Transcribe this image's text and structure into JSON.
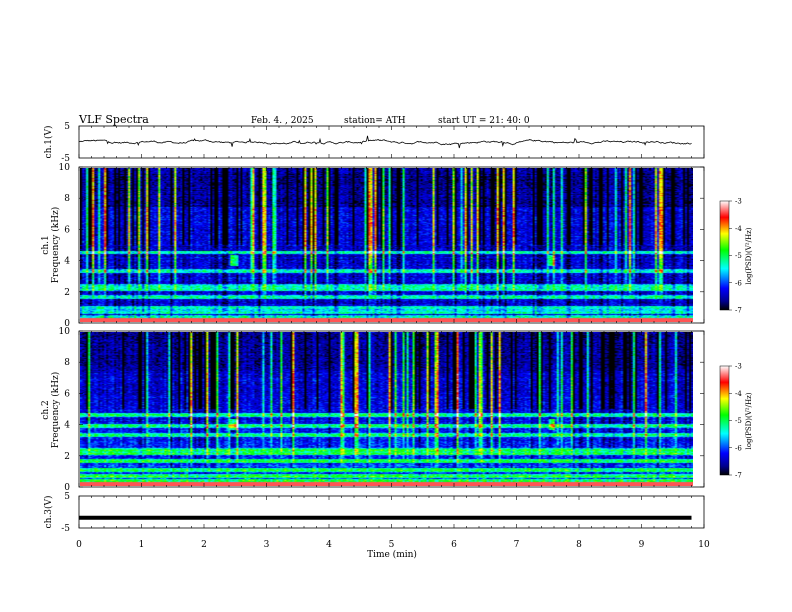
{
  "header": {
    "title": "VLF  Spectra",
    "date": "Feb. 4.  , 2025",
    "station": "station= ATH",
    "start": "start  UT  =    21: 40: 0"
  },
  "colors": {
    "waveform": "#000000",
    "colormap": [
      "#000000",
      "#00008c",
      "#0000ff",
      "#00ffff",
      "#00ff00",
      "#ffff00",
      "#ff0000",
      "#ffffff"
    ]
  },
  "chart_data": [
    {
      "type": "line",
      "panel": "ch1-waveform",
      "ylabel": "ch.1(V)",
      "yticks": [
        "5",
        "-5"
      ],
      "ylim": [
        -5,
        5
      ],
      "xlim": [
        0,
        10
      ],
      "data_end_min": 9.8,
      "baseline": 0,
      "noise_amplitude": 0.7,
      "series": [
        {
          "x": [
            0,
            2,
            4,
            6,
            8,
            9.8
          ],
          "y": [
            0,
            0,
            0,
            0,
            0,
            0
          ]
        }
      ]
    },
    {
      "type": "heatmap",
      "panel": "ch1-spectrogram",
      "ylabel_top": "ch.1",
      "ylabel": "Frequency (kHz)",
      "yticks": [
        "0",
        "2",
        "4",
        "6",
        "8",
        "10"
      ],
      "ylim": [
        0,
        10
      ],
      "xlim": [
        0,
        10
      ],
      "data_end_min": 9.8,
      "colorbar": {
        "label": "log(PSD)(V²/Hz)",
        "ticks": [
          "-3",
          "-4",
          "-5",
          "-6",
          "-7"
        ],
        "range": [
          -7,
          -3
        ]
      },
      "bands_kHz": [
        0.3,
        0.6,
        0.9,
        1.6,
        2.1,
        2.3,
        3.3,
        4.5
      ],
      "bursts": [
        {
          "t_min": 2.45,
          "f_kHz": 4.0
        },
        {
          "t_min": 7.55,
          "f_kHz": 4.0
        }
      ]
    },
    {
      "type": "heatmap",
      "panel": "ch2-spectrogram",
      "ylabel_top": "ch.2",
      "ylabel": "Frequency (kHz)",
      "yticks": [
        "0",
        "2",
        "4",
        "6",
        "8",
        "10"
      ],
      "ylim": [
        0,
        10
      ],
      "xlim": [
        0,
        10
      ],
      "data_end_min": 9.8,
      "colorbar": {
        "label": "log(PSD)(V²/Hz)",
        "ticks": [
          "-3",
          "-4",
          "-5",
          "-6",
          "-7"
        ],
        "range": [
          -7,
          -3
        ]
      },
      "bands_kHz": [
        0.3,
        0.6,
        1.0,
        1.6,
        2.1,
        2.3,
        3.3,
        3.9,
        4.6
      ],
      "bursts": [
        {
          "t_min": 2.45,
          "f_kHz": 4.0
        },
        {
          "t_min": 7.55,
          "f_kHz": 4.0
        }
      ]
    },
    {
      "type": "line",
      "panel": "ch3-waveform",
      "ylabel": "ch.3(V)",
      "yticks": [
        "5",
        "-5"
      ],
      "ylim": [
        -5,
        5
      ],
      "xlim": [
        0,
        10
      ],
      "xlabel": "Time  (min)",
      "xticks": [
        "0",
        "1",
        "2",
        "3",
        "4",
        "5",
        "6",
        "7",
        "8",
        "9",
        "10"
      ],
      "data_end_min": 9.8,
      "baseline": -1.8,
      "series": [
        {
          "x": [
            0,
            9.8
          ],
          "y": [
            -1.8,
            -1.8
          ]
        }
      ]
    }
  ]
}
